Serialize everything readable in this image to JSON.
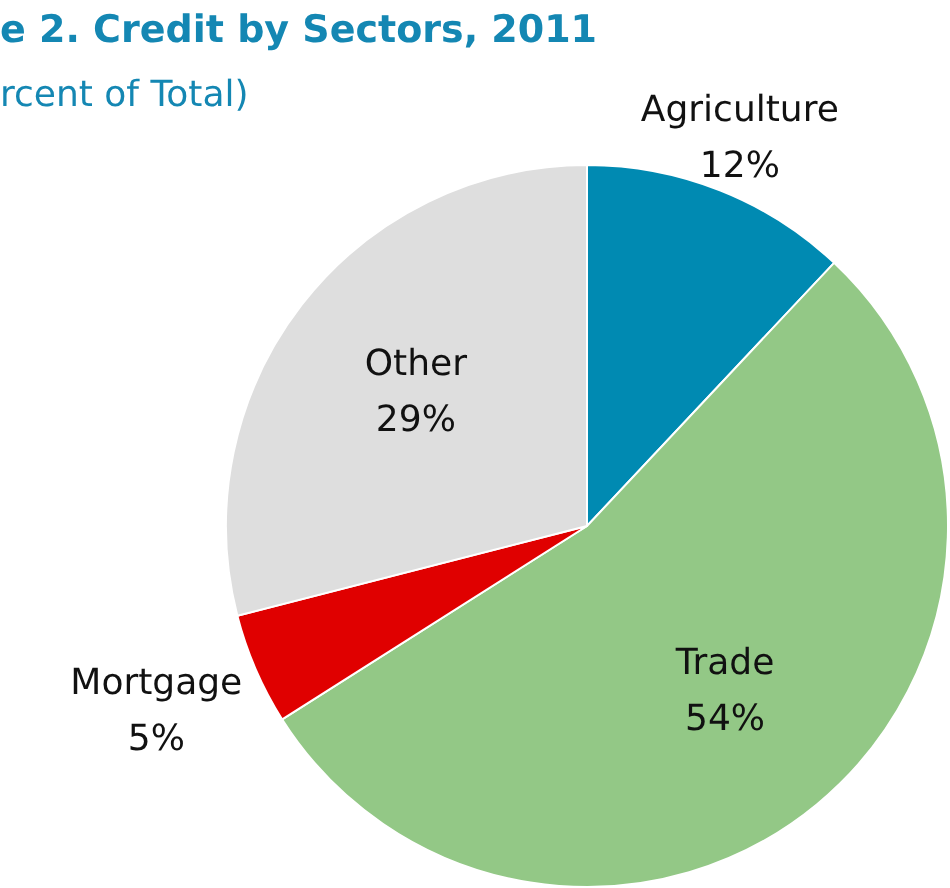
{
  "chart_data": {
    "type": "pie",
    "title": "e 2. Credit by Sectors, 2011",
    "subtitle": "rcent of Total)",
    "categories": [
      "Agriculture",
      "Trade",
      "Mortgage",
      "Other"
    ],
    "values": [
      12,
      54,
      5,
      29
    ],
    "colors": [
      "#008ab2",
      "#93c886",
      "#e00000",
      "#dedede"
    ],
    "value_labels": [
      "12%",
      "54%",
      "5%",
      "29%"
    ],
    "legend": false
  }
}
